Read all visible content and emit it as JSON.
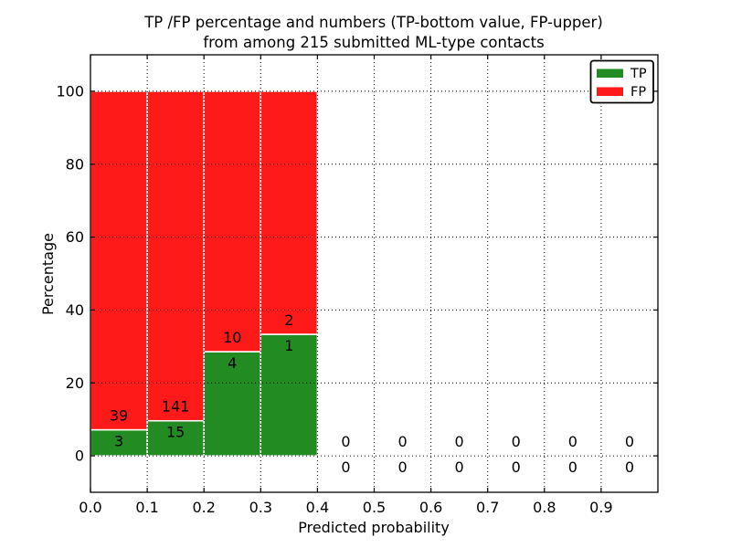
{
  "chart_data": {
    "type": "bar",
    "stacked": true,
    "title_line1": "TP /FP percentage and numbers (TP-bottom value, FP-upper)",
    "title_line2": "from among 215 submitted ML-type contacts",
    "xlabel": "Predicted probability",
    "ylabel": "Percentage",
    "xlim": [
      0.0,
      1.0
    ],
    "ylim": [
      -10,
      110
    ],
    "xticks": [
      "0.0",
      "0.1",
      "0.2",
      "0.3",
      "0.4",
      "0.5",
      "0.6",
      "0.7",
      "0.8",
      "0.9"
    ],
    "yticks": [
      0,
      20,
      40,
      60,
      80,
      100
    ],
    "grid": true,
    "grid_style": "dotted",
    "bin_width": 0.1,
    "categories": [
      0.05,
      0.15,
      0.25,
      0.35,
      0.45,
      0.55,
      0.65,
      0.75,
      0.85,
      0.95
    ],
    "series": [
      {
        "name": "TP",
        "color": "#228B22",
        "counts": [
          3,
          15,
          4,
          1,
          0,
          0,
          0,
          0,
          0,
          0
        ],
        "percent": [
          7.1429,
          9.6154,
          28.5714,
          33.3333,
          0,
          0,
          0,
          0,
          0,
          0
        ]
      },
      {
        "name": "FP",
        "color": "#FF1A1A",
        "counts": [
          39,
          141,
          10,
          2,
          0,
          0,
          0,
          0,
          0,
          0
        ],
        "percent": [
          92.8571,
          90.3846,
          71.4286,
          66.6667,
          0,
          0,
          0,
          0,
          0,
          0
        ]
      }
    ],
    "legend": {
      "position": "upper right",
      "entries": [
        {
          "label": "TP",
          "color": "#228B22"
        },
        {
          "label": "FP",
          "color": "#FF1A1A"
        }
      ]
    },
    "colors": {
      "bar_edge": "#ffffff",
      "axis": "#000000",
      "grid": "#000000",
      "background": "#ffffff"
    }
  }
}
